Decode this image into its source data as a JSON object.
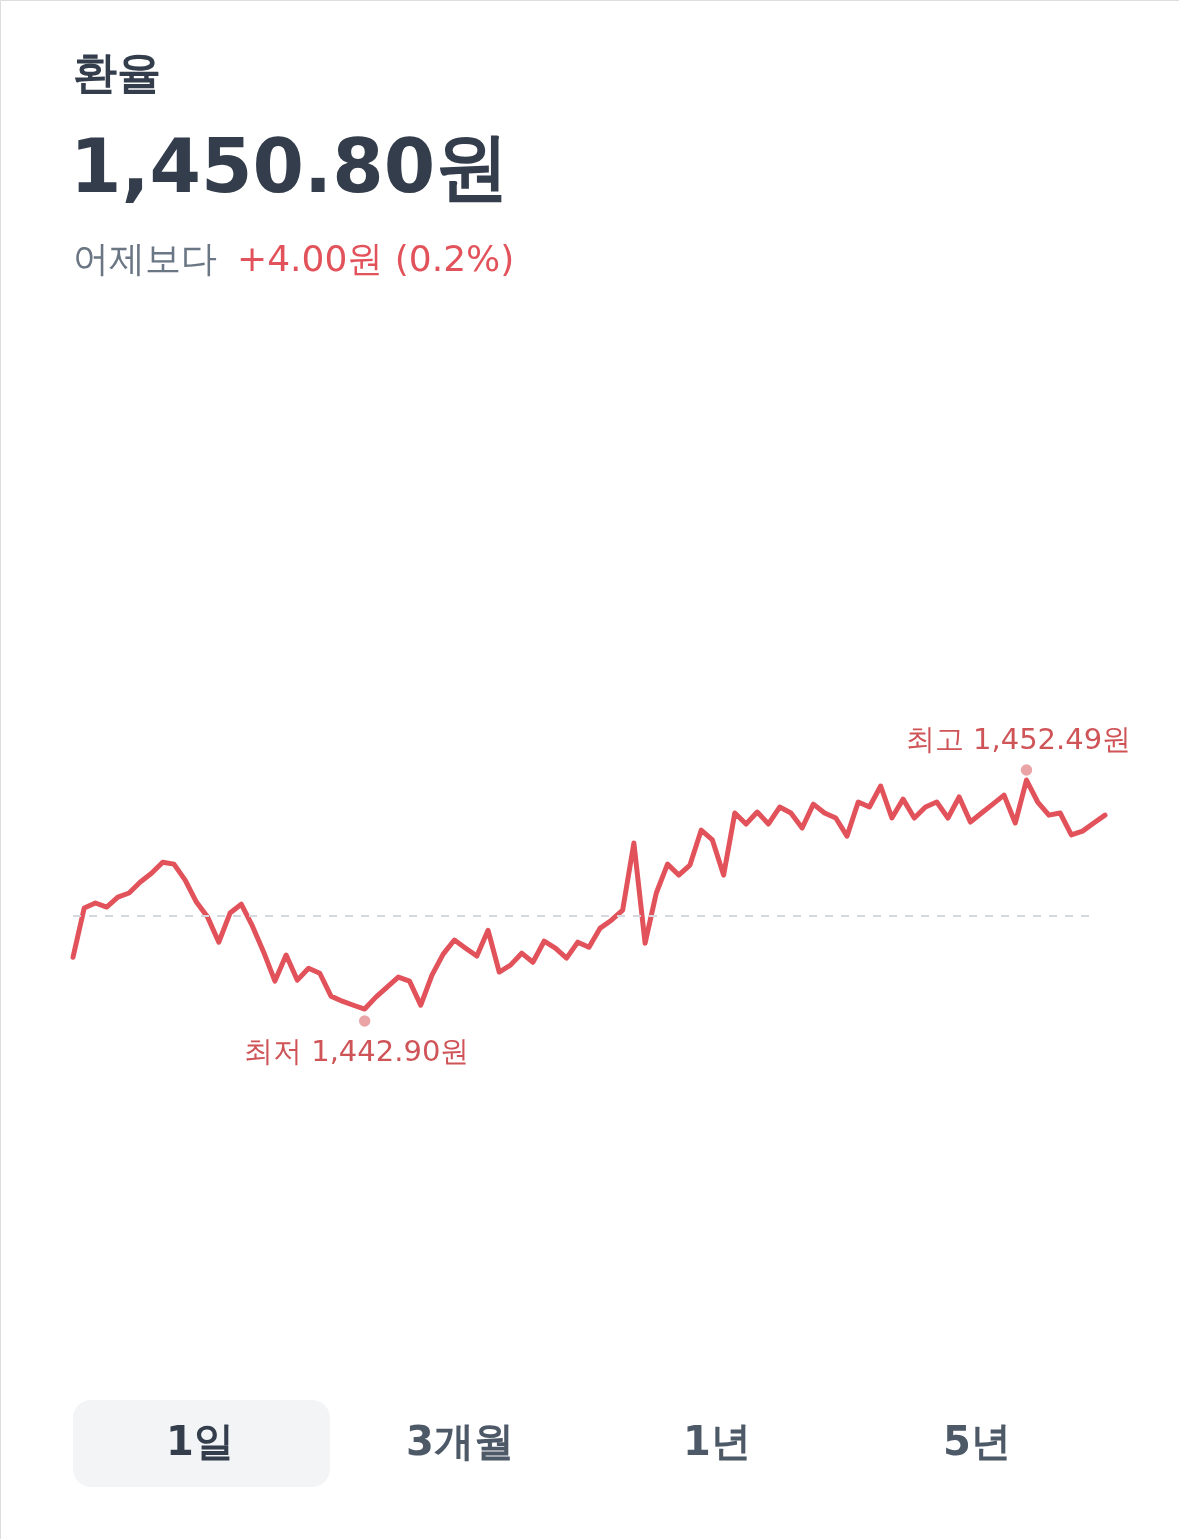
{
  "chart_data": {
    "type": "line",
    "title": "환율",
    "subtitle": "1,450.80원",
    "categories": [
      null,
      null,
      null,
      null,
      null,
      null,
      null,
      null,
      null,
      null,
      null,
      null,
      null,
      null,
      null,
      null,
      null,
      null,
      null,
      null,
      null,
      null,
      null,
      null,
      null,
      null,
      null,
      null,
      null,
      null,
      null,
      null,
      null,
      null,
      null,
      null,
      null,
      null,
      null,
      null,
      null,
      null,
      null,
      null,
      null,
      null,
      null,
      null,
      null,
      null,
      null,
      null,
      null,
      null,
      null,
      null,
      null,
      null,
      null,
      null,
      null,
      null,
      null,
      null,
      null,
      null,
      null,
      null,
      null,
      null,
      null,
      null,
      null,
      null,
      null,
      null,
      null,
      null,
      null,
      null,
      null,
      null,
      null,
      null,
      null,
      null,
      null,
      null,
      null,
      null,
      null,
      null,
      null
    ],
    "series": [
      {
        "color": "#e2525b",
        "values": [
          1445.07,
          1447.13,
          1447.34,
          1447.17,
          1447.59,
          1447.76,
          1448.22,
          1448.59,
          1449.05,
          1448.97,
          1448.3,
          1447.38,
          1446.75,
          1445.7,
          1446.92,
          1447.29,
          1446.37,
          1445.28,
          1444.07,
          1445.16,
          1444.11,
          1444.61,
          1444.4,
          1443.44,
          1443.23,
          1443.06,
          1442.9,
          1443.4,
          1443.82,
          1444.24,
          1444.07,
          1443.06,
          1444.32,
          1445.2,
          1445.79,
          1445.45,
          1445.12,
          1446.2,
          1444.45,
          1444.74,
          1445.24,
          1444.86,
          1445.74,
          1445.45,
          1445.03,
          1445.7,
          1445.49,
          1446.29,
          1446.62,
          1447.04,
          1449.85,
          1445.66,
          1447.76,
          1448.97,
          1448.51,
          1448.93,
          1450.39,
          1449.98,
          1448.51,
          1451.11,
          1450.65,
          1451.15,
          1450.65,
          1451.36,
          1451.11,
          1450.48,
          1451.48,
          1451.11,
          1450.9,
          1450.14,
          1451.57,
          1451.36,
          1452.24,
          1450.9,
          1451.69,
          1450.9,
          1451.36,
          1451.57,
          1450.9,
          1451.78,
          1450.73,
          1451.11,
          1451.48,
          1451.86,
          1450.69,
          1452.49,
          1451.57,
          1451.02,
          1451.11,
          1450.19,
          1450.35,
          1450.69,
          1451.02
        ],
        "value_labels": [
          null,
          null,
          null,
          null,
          null,
          null,
          null,
          null,
          null,
          null,
          null,
          null,
          null,
          null,
          null,
          null,
          null,
          null,
          null,
          null,
          null,
          null,
          null,
          null,
          null,
          null,
          "최저 1,442.90원",
          null,
          null,
          null,
          null,
          null,
          null,
          null,
          null,
          null,
          null,
          null,
          null,
          null,
          null,
          null,
          null,
          null,
          null,
          null,
          null,
          null,
          null,
          null,
          null,
          null,
          null,
          null,
          null,
          null,
          null,
          null,
          null,
          null,
          null,
          null,
          null,
          null,
          null,
          null,
          null,
          null,
          null,
          null,
          null,
          null,
          null,
          null,
          null,
          null,
          null,
          null,
          null,
          null,
          null,
          null,
          null,
          null,
          null,
          "최고 1,452.49원",
          null,
          null,
          null,
          null,
          null,
          null,
          null
        ]
      }
    ],
    "ref_lines": [
      {
        "axis": "y",
        "value": 1446.8,
        "color": "#d5d8dc",
        "line_style": "dashed"
      }
    ],
    "annotations": [
      "어제보다",
      "+4.00원 (0.2%)",
      "1일",
      "3개월",
      "1년",
      "5년"
    ],
    "tick_labels": false
  }
}
